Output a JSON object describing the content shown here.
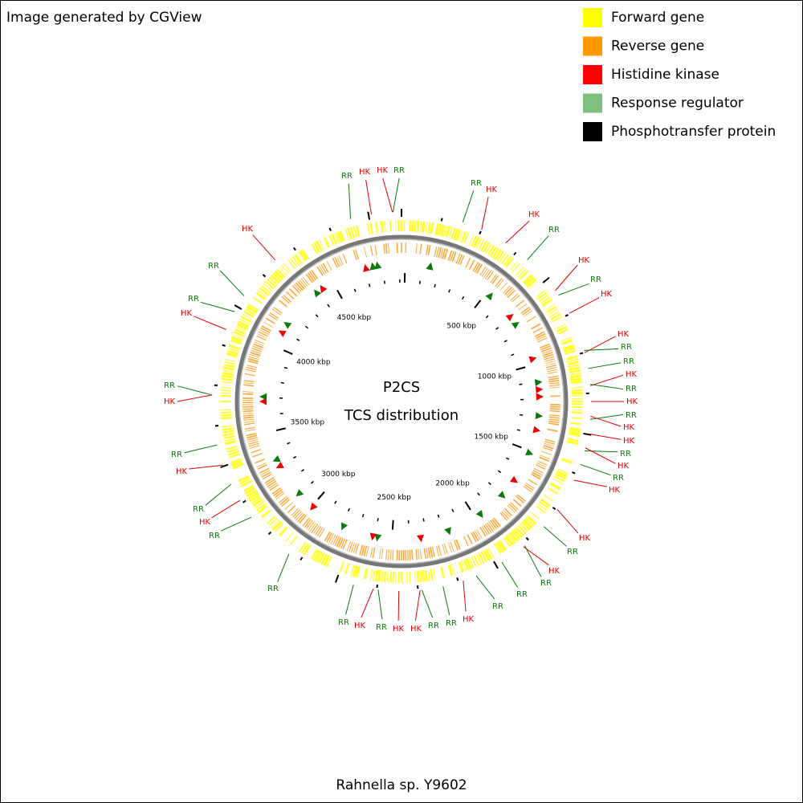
{
  "header": {
    "title": "Image generated by CGView"
  },
  "legend": [
    {
      "label": "Forward gene",
      "color": "#ffff00"
    },
    {
      "label": "Reverse gene",
      "color": "#ff9900"
    },
    {
      "label": "Histidine kinase",
      "color": "#ff0000"
    },
    {
      "label": "Response regulator",
      "color": "#80c080"
    },
    {
      "label": "Phosphotransfer protein",
      "color": "#000000"
    }
  ],
  "map": {
    "title": "P2CS",
    "subtitle": "TCS distribution",
    "ruler_labels": [
      "500 kbp",
      "1000 kbp",
      "1500 kbp",
      "2000 kbp",
      "2500 kbp",
      "3000 kbp",
      "3500 kbp",
      "4000 kbp",
      "4500 kbp"
    ],
    "feature_labels": [
      "RR",
      "HK",
      "HK",
      "RR",
      "RR",
      "HK",
      "HK",
      "RR",
      "HK",
      "RR",
      "HK",
      "HK",
      "RR",
      "RR",
      "HK",
      "RR",
      "HK",
      "RR",
      "HK",
      "HK",
      "RR",
      "HK",
      "RR",
      "HK",
      "HK",
      "RR",
      "HK",
      "RR",
      "RR",
      "RR",
      "HK",
      "RR",
      "RR",
      "HK",
      "HK",
      "RR",
      "HK",
      "RR",
      "RR",
      "RR",
      "HK",
      "RR",
      "HK",
      "RR",
      "HK",
      "RR",
      "HK",
      "RR",
      "RR",
      "HK"
    ]
  },
  "footer": {
    "organism": "Rahnella sp. Y9602"
  }
}
